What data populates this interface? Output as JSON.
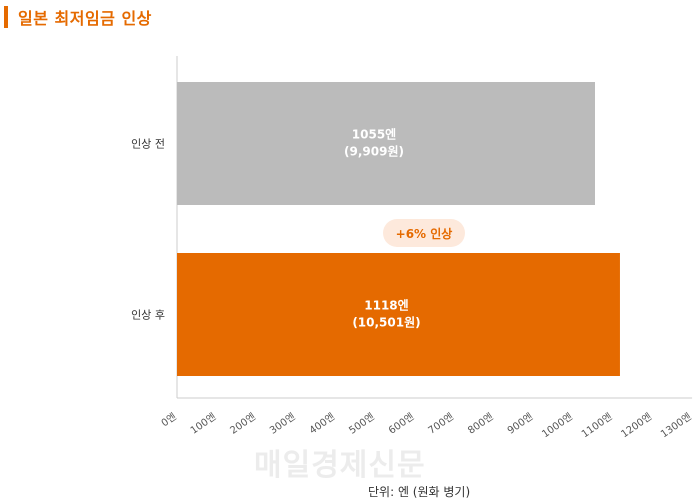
{
  "title": "일본 최저임금 인상",
  "unit_note": "단위: 엔 (원화 병기)",
  "watermark": "매일경제신문",
  "colors": {
    "accent": "#e56a00",
    "bar_before": "#bbbbbb",
    "bar_after": "#e56a00",
    "badge_bg": "#fde9dc",
    "badge_text": "#e56a00",
    "bar_label": "#ffffff",
    "axis_line": "#cccccc"
  },
  "chart_data": {
    "type": "bar",
    "orientation": "horizontal",
    "categories": [
      "인상 전",
      "인상 후"
    ],
    "values": [
      1055,
      1118
    ],
    "bar_labels": [
      [
        "1055엔",
        "(9,909원)"
      ],
      [
        "1118엔",
        "(10,501원)"
      ]
    ],
    "annotation": "+6% 인상",
    "xlim": [
      0,
      1300
    ],
    "x_ticks": [
      "0엔",
      "100엔",
      "200엔",
      "300엔",
      "400엔",
      "500엔",
      "600엔",
      "700엔",
      "800엔",
      "900엔",
      "1000엔",
      "1100엔",
      "1200엔",
      "1300엔"
    ],
    "grid": false,
    "legend": "none"
  }
}
